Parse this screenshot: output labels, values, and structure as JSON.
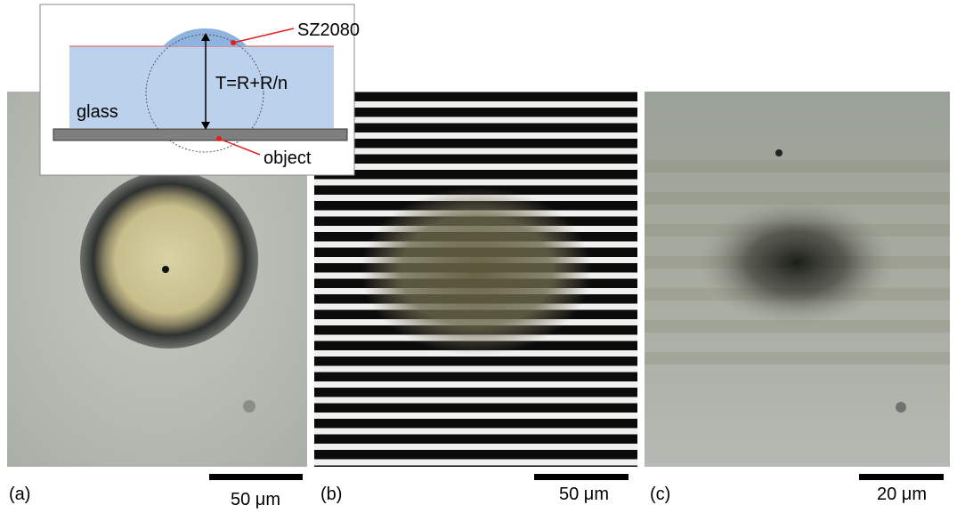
{
  "inset": {
    "material": "SZ2080",
    "thickness": "T=R+R/n",
    "substrate": "glass",
    "target": "object"
  },
  "panels": [
    {
      "label": "(a)",
      "scale_bar": "50 μm"
    },
    {
      "label": "(b)",
      "scale_bar": "50 μm"
    },
    {
      "label": "(c)",
      "scale_bar": "20 μm"
    }
  ]
}
